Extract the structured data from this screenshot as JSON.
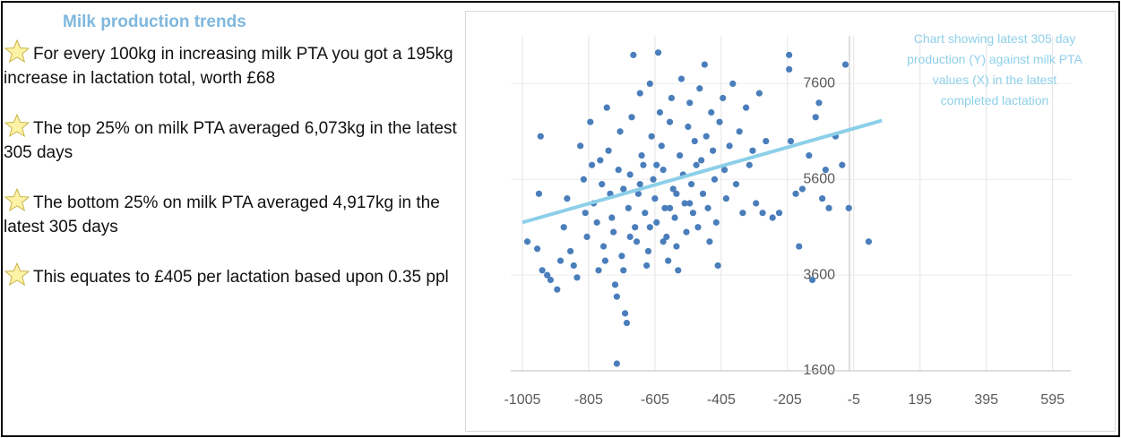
{
  "panel": {
    "title": "Milk production trends",
    "bullets": [
      "For every 100kg in increasing milk PTA you got a 195kg increase in lactation total, worth £68",
      "The top 25% on milk PTA averaged 6,073kg in the latest 305 days",
      "The bottom 25% on milk PTA averaged 4,917kg in the latest 305 days",
      "This equates to £405 per lactation based upon 0.35 ppl"
    ]
  },
  "chart_data": {
    "type": "scatter",
    "annotation": "Chart showing latest 305 day production (Y) against milk PTA values (X) in the latest completed lactation",
    "color": "#4a7ebb",
    "x": [
      -990,
      -960,
      -955,
      -950,
      -945,
      -930,
      -920,
      -900,
      -890,
      -880,
      -870,
      -860,
      -850,
      -840,
      -830,
      -820,
      -815,
      -810,
      -800,
      -795,
      -790,
      -780,
      -775,
      -770,
      -765,
      -760,
      -755,
      -750,
      -745,
      -740,
      -735,
      -730,
      -725,
      -720,
      -715,
      -710,
      -705,
      -700,
      -695,
      -690,
      -720,
      -685,
      -680,
      -675,
      -670,
      -665,
      -660,
      -655,
      -650,
      -645,
      -640,
      -635,
      -630,
      -625,
      -620,
      -615,
      -610,
      -605,
      -600,
      -595,
      -590,
      -585,
      -580,
      -575,
      -570,
      -565,
      -560,
      -555,
      -550,
      -545,
      -540,
      -535,
      -530,
      -525,
      -520,
      -515,
      -510,
      -505,
      -500,
      -495,
      -490,
      -485,
      -480,
      -475,
      -470,
      -465,
      -460,
      -455,
      -450,
      -445,
      -440,
      -435,
      -430,
      -425,
      -420,
      -415,
      -410,
      -400,
      -395,
      -390,
      -380,
      -370,
      -360,
      -350,
      -340,
      -330,
      -320,
      -310,
      -300,
      -290,
      -280,
      -270,
      -250,
      -230,
      -200,
      -200,
      -195,
      -180,
      -170,
      -160,
      -140,
      -130,
      -120,
      -110,
      -100,
      -90,
      -80,
      -60,
      -40,
      -30,
      -20,
      -540,
      -650,
      -600,
      -700,
      -560,
      -620,
      -580,
      -680,
      -500,
      40
    ],
    "values": [
      4300,
      4150,
      5300,
      6500,
      3700,
      3600,
      3500,
      3300,
      3900,
      4600,
      5200,
      4100,
      3800,
      3550,
      6300,
      5600,
      4900,
      4400,
      6800,
      5900,
      5100,
      4700,
      3700,
      6000,
      5500,
      4200,
      3900,
      7100,
      6200,
      5300,
      4800,
      4500,
      3400,
      3150,
      5800,
      6600,
      4000,
      3700,
      2800,
      2600,
      1750,
      5000,
      5700,
      6900,
      8200,
      4600,
      4300,
      5300,
      7400,
      6100,
      5900,
      4900,
      3800,
      4100,
      7600,
      6500,
      5600,
      5200,
      4700,
      8250,
      7000,
      6300,
      5800,
      5000,
      4400,
      3900,
      6800,
      7300,
      5400,
      4800,
      4200,
      3700,
      6100,
      7700,
      5700,
      5100,
      4500,
      6700,
      7200,
      5500,
      4900,
      6400,
      5900,
      4600,
      7500,
      6000,
      5300,
      8000,
      6500,
      5000,
      4300,
      7000,
      6200,
      5600,
      4700,
      3800,
      6800,
      7300,
      5800,
      5200,
      6300,
      7600,
      5500,
      6600,
      4900,
      7100,
      5900,
      6200,
      5100,
      7400,
      4900,
      6400,
      4800,
      4900,
      8200,
      7900,
      6400,
      5300,
      4200,
      5400,
      6100,
      3500,
      6900,
      7200,
      5200,
      5800,
      5000,
      6500,
      5900,
      8000,
      5000,
      5300,
      5500,
      5900,
      5400,
      5000,
      4600,
      4300,
      4400,
      5100,
      4300
    ],
    "trendline": {
      "x": [
        -1005,
        80
      ],
      "values": [
        4700,
        6830
      ],
      "color": "#8ccfe8"
    },
    "xlim": [
      -1040,
      650
    ],
    "ylim": [
      1600,
      8600
    ],
    "xticks": [
      -1005,
      -805,
      -605,
      -405,
      -205,
      -5,
      195,
      395,
      595
    ],
    "yticks": [
      1600,
      3600,
      5600,
      7600
    ],
    "grid": true
  }
}
